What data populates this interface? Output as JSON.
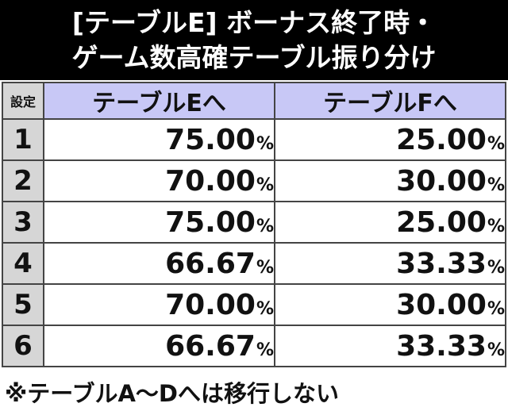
{
  "title": {
    "line1": "[テーブルE] ボーナス終了時・",
    "line2": "ゲーム数高確テーブル振り分け"
  },
  "table": {
    "headers": {
      "setting": "設定",
      "col_e": "テーブルEへ",
      "col_f": "テーブルFへ"
    },
    "percent_sign": "%",
    "rows": [
      {
        "setting": "1",
        "to_e": "75.00",
        "to_f": "25.00"
      },
      {
        "setting": "2",
        "to_e": "70.00",
        "to_f": "30.00"
      },
      {
        "setting": "3",
        "to_e": "75.00",
        "to_f": "25.00"
      },
      {
        "setting": "4",
        "to_e": "66.67",
        "to_f": "33.33"
      },
      {
        "setting": "5",
        "to_e": "70.00",
        "to_f": "30.00"
      },
      {
        "setting": "6",
        "to_e": "66.67",
        "to_f": "33.33"
      }
    ]
  },
  "footnote": "※テーブルA〜Dへは移行しない"
}
